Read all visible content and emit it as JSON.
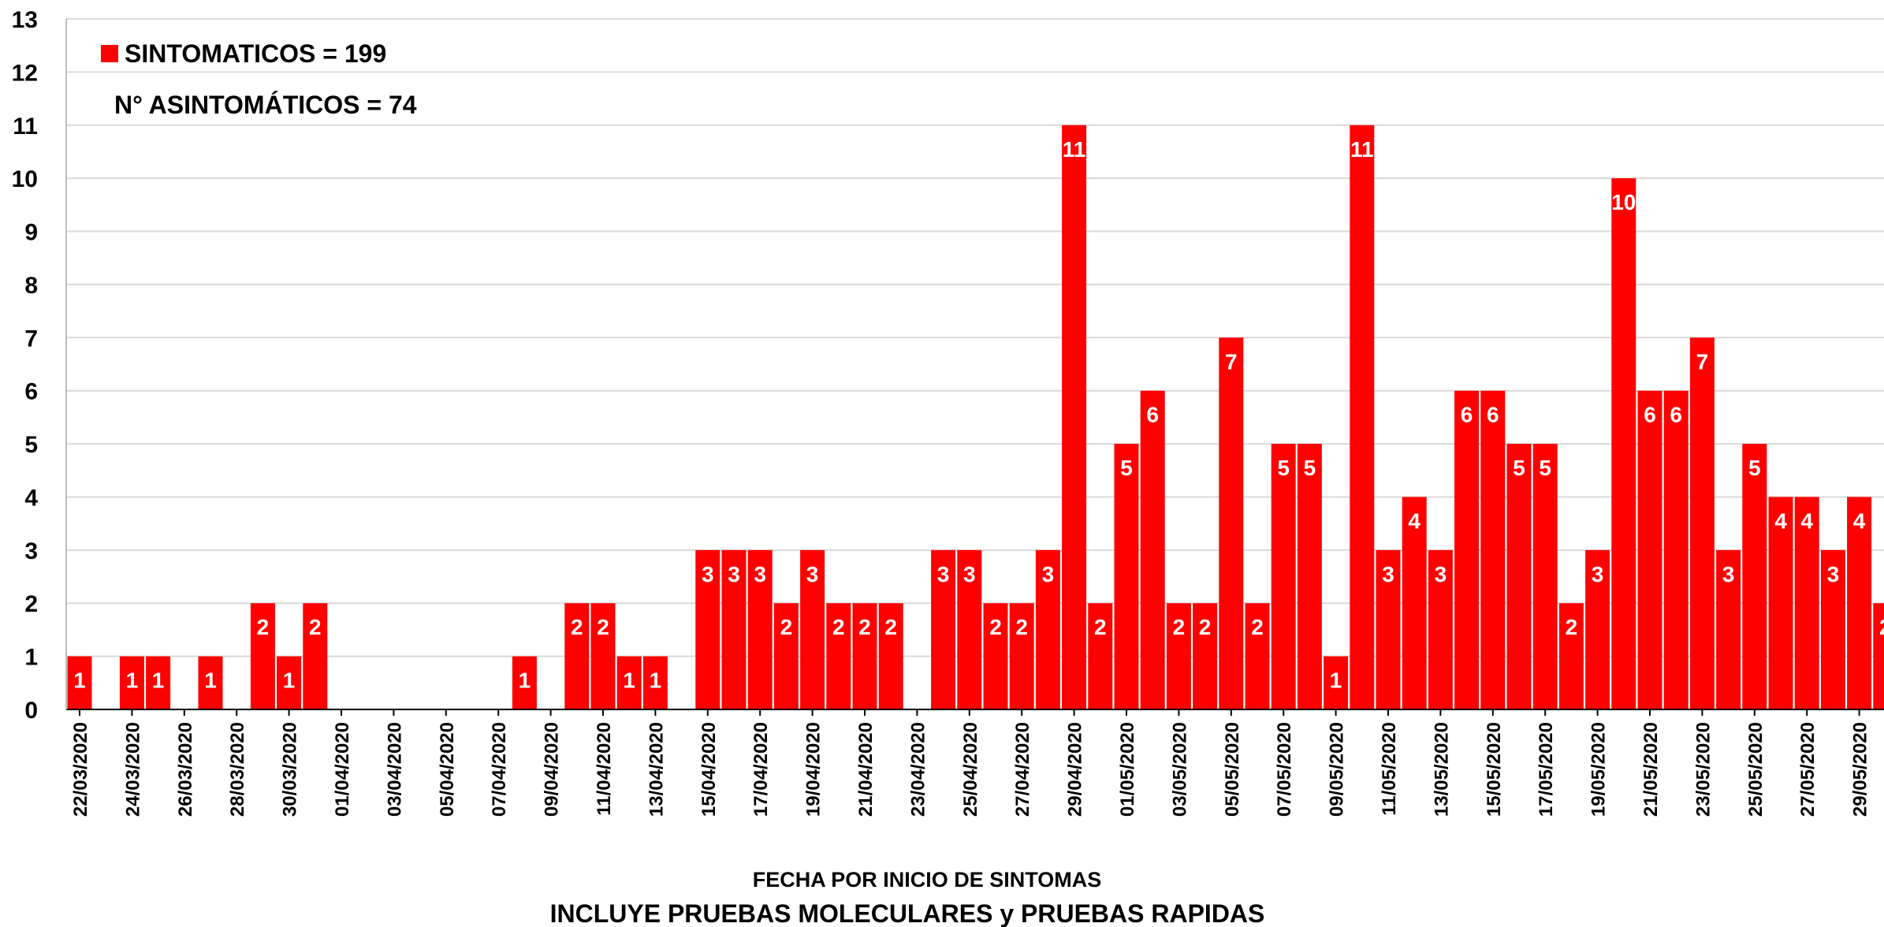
{
  "chart_data": {
    "type": "bar",
    "categories": [
      "22/03/2020",
      "23/03/2020",
      "24/03/2020",
      "25/03/2020",
      "26/03/2020",
      "27/03/2020",
      "28/03/2020",
      "29/03/2020",
      "30/03/2020",
      "31/03/2020",
      "01/04/2020",
      "02/04/2020",
      "03/04/2020",
      "04/04/2020",
      "05/04/2020",
      "06/04/2020",
      "07/04/2020",
      "08/04/2020",
      "09/04/2020",
      "10/04/2020",
      "11/04/2020",
      "12/04/2020",
      "13/04/2020",
      "14/04/2020",
      "15/04/2020",
      "16/04/2020",
      "17/04/2020",
      "18/04/2020",
      "19/04/2020",
      "20/04/2020",
      "21/04/2020",
      "22/04/2020",
      "23/04/2020",
      "24/04/2020",
      "25/04/2020",
      "26/04/2020",
      "27/04/2020",
      "28/04/2020",
      "29/04/2020",
      "30/04/2020",
      "01/05/2020",
      "02/05/2020",
      "03/05/2020",
      "04/05/2020",
      "05/05/2020",
      "06/05/2020",
      "07/05/2020",
      "08/05/2020",
      "09/05/2020",
      "10/05/2020",
      "11/05/2020",
      "12/05/2020",
      "13/05/2020",
      "14/05/2020",
      "15/05/2020",
      "16/05/2020",
      "17/05/2020",
      "18/05/2020",
      "19/05/2020",
      "20/05/2020",
      "21/05/2020",
      "22/05/2020",
      "23/05/2020",
      "24/05/2020",
      "25/05/2020",
      "26/05/2020",
      "27/05/2020",
      "28/05/2020",
      "29/05/2020",
      "30/05/2020"
    ],
    "tick_labels": [
      "22/03/2020",
      "24/03/2020",
      "26/03/2020",
      "28/03/2020",
      "30/03/2020",
      "01/04/2020",
      "03/04/2020",
      "05/04/2020",
      "07/04/2020",
      "09/04/2020",
      "11/04/2020",
      "13/04/2020",
      "15/04/2020",
      "17/04/2020",
      "19/04/2020",
      "21/04/2020",
      "23/04/2020",
      "25/04/2020",
      "27/04/2020",
      "29/04/2020",
      "01/05/2020",
      "03/05/2020",
      "05/05/2020",
      "07/05/2020",
      "09/05/2020",
      "11/05/2020",
      "13/05/2020",
      "15/05/2020",
      "17/05/2020",
      "19/05/2020",
      "21/05/2020",
      "23/05/2020",
      "25/05/2020",
      "27/05/2020",
      "29/05/2020"
    ],
    "values": [
      1,
      0,
      1,
      1,
      0,
      1,
      0,
      2,
      1,
      2,
      0,
      0,
      0,
      0,
      0,
      0,
      0,
      1,
      0,
      2,
      2,
      1,
      1,
      0,
      3,
      3,
      3,
      2,
      3,
      2,
      2,
      2,
      0,
      3,
      3,
      2,
      2,
      3,
      11,
      2,
      5,
      6,
      2,
      2,
      7,
      2,
      5,
      5,
      1,
      11,
      3,
      4,
      3,
      6,
      6,
      5,
      5,
      2,
      3,
      10,
      6,
      6,
      7,
      3,
      5,
      4,
      4,
      3,
      4,
      2
    ],
    "series": [
      {
        "name": "SINTOMATICOS = 199",
        "color": "#ff0000"
      }
    ],
    "ylim": [
      0,
      13
    ],
    "yticks": [
      0,
      1,
      2,
      3,
      4,
      5,
      6,
      7,
      8,
      9,
      10,
      11,
      12,
      13
    ],
    "grid": true,
    "legend": "top-left",
    "xlabel": "FECHA POR INICIO DE SINTOMAS",
    "ylabel": "",
    "annotations": [
      "N° ASINTOMÁTICOS = 74"
    ],
    "footnote": "INCLUYE PRUEBAS MOLECULARES y PRUEBAS RAPIDAS"
  }
}
